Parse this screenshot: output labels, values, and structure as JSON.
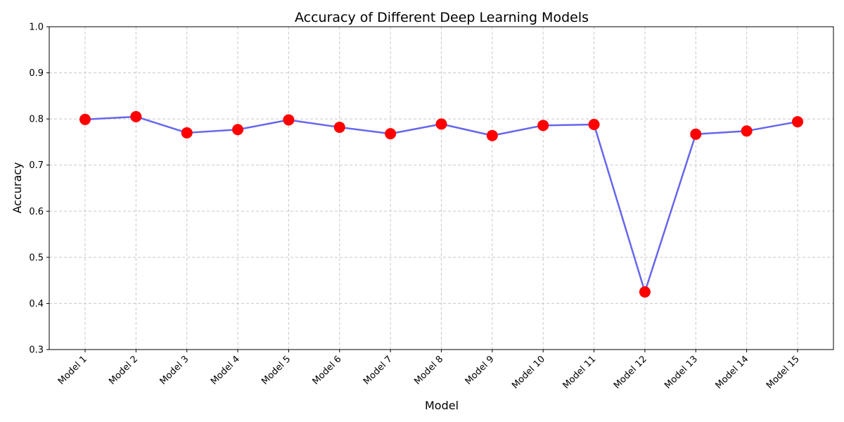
{
  "chart_data": {
    "type": "line",
    "title": "Accuracy of Different Deep Learning Models",
    "xlabel": "Model",
    "ylabel": "Accuracy",
    "categories": [
      "Model 1",
      "Model 2",
      "Model 3",
      "Model 4",
      "Model 5",
      "Model 6",
      "Model 7",
      "Model 8",
      "Model 9",
      "Model 10",
      "Model 11",
      "Model 12",
      "Model 13",
      "Model 14",
      "Model 15"
    ],
    "series": [
      {
        "values": [
          0.799,
          0.805,
          0.77,
          0.777,
          0.798,
          0.782,
          0.768,
          0.789,
          0.764,
          0.786,
          0.788,
          0.425,
          0.767,
          0.774,
          0.794
        ]
      }
    ],
    "ylim": [
      0.3,
      1.0
    ],
    "yticks": [
      "0.3",
      "0.4",
      "0.5",
      "0.6",
      "0.7",
      "0.8",
      "0.9",
      "1.0"
    ],
    "grid": true,
    "line_color": "#6666ee",
    "marker_color": "#ff0000"
  }
}
